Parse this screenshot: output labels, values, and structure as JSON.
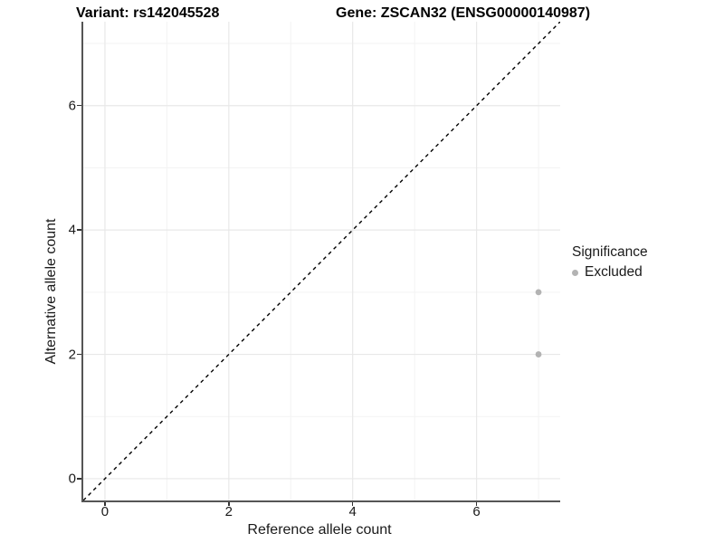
{
  "title": {
    "variant": "Variant: rs142045528",
    "gene": "Gene: ZSCAN32 (ENSG00000140987)"
  },
  "chart_data": {
    "type": "scatter",
    "title": "Variant: rs142045528   Gene: ZSCAN32 (ENSG00000140987)",
    "xlabel": "Reference allele count",
    "ylabel": "Alternative allele count",
    "xlim": [
      -0.35,
      7.35
    ],
    "ylim": [
      -0.35,
      7.35
    ],
    "x_ticks": [
      0,
      2,
      4,
      6
    ],
    "y_ticks": [
      0,
      2,
      4,
      6
    ],
    "x_minor_ticks": [
      1,
      3,
      5,
      7
    ],
    "y_minor_ticks": [
      1,
      3,
      5,
      7
    ],
    "grid": "major and minor gridlines on, white background",
    "reference_line": {
      "type": "identity y=x",
      "style": "dashed",
      "color": "#000000"
    },
    "series": [
      {
        "name": "Excluded",
        "color": "#b3b3b3",
        "points": [
          {
            "x": 7,
            "y": 3
          },
          {
            "x": 7,
            "y": 2
          }
        ]
      }
    ],
    "legend": {
      "title": "Significance",
      "position": "right",
      "entries": [
        {
          "label": "Excluded",
          "color": "#b3b3b3"
        }
      ]
    }
  },
  "colors": {
    "background": "#ffffff",
    "axis_line": "#555555",
    "tick_mark": "#333333",
    "major_grid": "#e8e8e8",
    "minor_grid": "#f3f3f3",
    "point": "#b3b3b3",
    "text": "#1a1a1a",
    "title_text": "#000000"
  }
}
